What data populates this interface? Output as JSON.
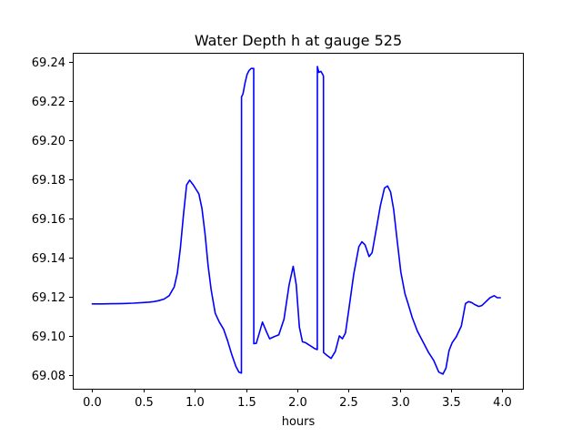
{
  "chart_data": {
    "type": "line",
    "title": "Water Depth h at gauge 525",
    "xlabel": "hours",
    "ylabel": "",
    "xlim": [
      -0.19,
      4.2
    ],
    "ylim": [
      69.073,
      69.2445
    ],
    "xticks": [
      0.0,
      0.5,
      1.0,
      1.5,
      2.0,
      2.5,
      3.0,
      3.5,
      4.0
    ],
    "xtick_labels": [
      "0.0",
      "0.5",
      "1.0",
      "1.5",
      "2.0",
      "2.5",
      "3.0",
      "3.5",
      "4.0"
    ],
    "yticks": [
      69.08,
      69.1,
      69.12,
      69.14,
      69.16,
      69.18,
      69.2,
      69.22,
      69.24
    ],
    "ytick_labels": [
      "69.08",
      "69.10",
      "69.12",
      "69.14",
      "69.16",
      "69.18",
      "69.20",
      "69.22",
      "69.24"
    ],
    "grid": false,
    "series": [
      {
        "color": "#0000ff",
        "x": [
          0.0,
          0.1,
          0.2,
          0.3,
          0.4,
          0.5,
          0.55,
          0.6,
          0.65,
          0.7,
          0.75,
          0.8,
          0.83,
          0.86,
          0.89,
          0.92,
          0.95,
          0.98,
          1.01,
          1.04,
          1.07,
          1.1,
          1.13,
          1.16,
          1.2,
          1.24,
          1.28,
          1.32,
          1.36,
          1.4,
          1.43,
          1.455,
          1.456,
          1.47,
          1.49,
          1.51,
          1.53,
          1.55,
          1.57,
          1.575,
          1.576,
          1.6,
          1.63,
          1.66,
          1.7,
          1.73,
          1.77,
          1.82,
          1.87,
          1.92,
          1.96,
          1.99,
          2.02,
          2.05,
          2.08,
          2.11,
          2.14,
          2.17,
          2.195,
          2.196,
          2.21,
          2.23,
          2.25,
          2.255,
          2.256,
          2.29,
          2.33,
          2.37,
          2.41,
          2.44,
          2.47,
          2.5,
          2.55,
          2.6,
          2.63,
          2.66,
          2.7,
          2.73,
          2.77,
          2.81,
          2.85,
          2.88,
          2.91,
          2.94,
          2.97,
          3.01,
          3.05,
          3.08,
          3.12,
          3.17,
          3.22,
          3.28,
          3.33,
          3.38,
          3.42,
          3.45,
          3.48,
          3.51,
          3.55,
          3.6,
          3.64,
          3.67,
          3.7,
          3.73,
          3.77,
          3.8,
          3.84,
          3.88,
          3.92,
          3.95,
          3.98
        ],
        "values": [
          69.1163,
          69.1163,
          69.1164,
          69.1165,
          69.1167,
          69.117,
          69.1172,
          69.1175,
          69.118,
          69.1188,
          69.1205,
          69.125,
          69.132,
          69.145,
          69.162,
          69.177,
          69.1795,
          69.1775,
          69.175,
          69.1725,
          69.165,
          69.152,
          69.136,
          69.1235,
          69.1115,
          69.107,
          69.1035,
          69.0975,
          69.0905,
          69.0845,
          69.0815,
          69.081,
          69.222,
          69.2235,
          69.229,
          69.2335,
          69.2355,
          69.2365,
          69.2365,
          69.2365,
          69.096,
          69.0962,
          69.1015,
          69.107,
          69.102,
          69.0985,
          69.0995,
          69.1005,
          69.1085,
          69.126,
          69.1355,
          69.126,
          69.1045,
          69.097,
          69.0965,
          69.0955,
          69.0945,
          69.0935,
          69.093,
          69.2375,
          69.2345,
          69.235,
          69.2333,
          69.2325,
          69.0915,
          69.09,
          69.0885,
          69.092,
          69.1,
          69.0985,
          69.1015,
          69.1125,
          69.1315,
          69.1455,
          69.148,
          69.1465,
          69.1405,
          69.1425,
          69.1545,
          69.1665,
          69.1755,
          69.1765,
          69.1735,
          69.1645,
          69.1505,
          69.1325,
          69.1215,
          69.1165,
          69.1095,
          69.1025,
          69.0975,
          69.0915,
          69.0875,
          69.0815,
          69.0805,
          69.0835,
          69.0925,
          69.0965,
          69.0995,
          69.105,
          69.1165,
          69.1175,
          69.117,
          69.116,
          69.115,
          69.1155,
          69.1175,
          69.1195,
          69.1205,
          69.1195,
          69.1195
        ]
      }
    ]
  }
}
